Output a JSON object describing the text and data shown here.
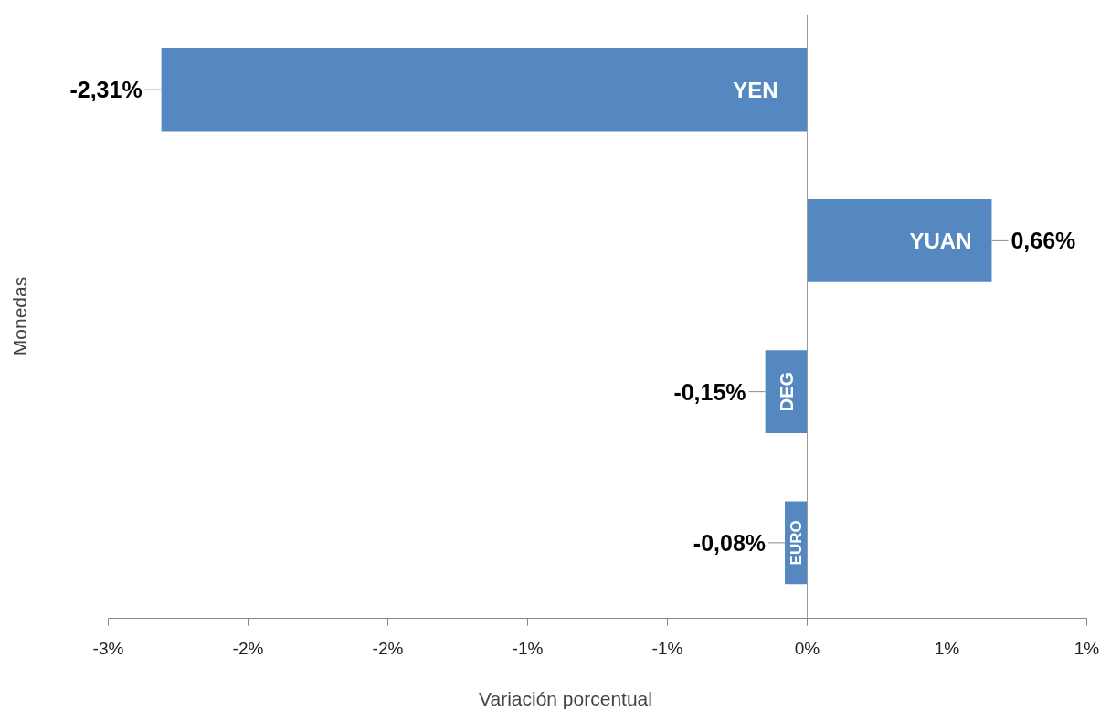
{
  "chart_data": {
    "type": "bar",
    "orientation": "horizontal",
    "xlabel": "Variación porcentual",
    "ylabel": "Monedas",
    "categories": [
      "YEN",
      "YUAN",
      "DEG",
      "EURO"
    ],
    "values": [
      -2.31,
      0.66,
      -0.15,
      -0.08
    ],
    "value_labels": [
      "-2,31%",
      "0,66%",
      "-0,15%",
      "-0,08%"
    ],
    "color": "#5588c1",
    "xlim": [
      -2.5,
      1
    ],
    "xticks": [
      {
        "value": -2.5,
        "label": "-3%"
      },
      {
        "value": -2,
        "label": "-2%"
      },
      {
        "value": -1.5,
        "label": "-2%"
      },
      {
        "value": -1,
        "label": "-1%"
      },
      {
        "value": -0.5,
        "label": "-1%"
      },
      {
        "value": 0,
        "label": "0%"
      },
      {
        "value": 0.5,
        "label": "1%"
      },
      {
        "value": 1,
        "label": "1%"
      }
    ],
    "ref_lines": [
      {
        "axis": "x",
        "value": 0,
        "color": "#999999"
      }
    ],
    "tick_labels": "x",
    "grid": false,
    "legend": false
  }
}
